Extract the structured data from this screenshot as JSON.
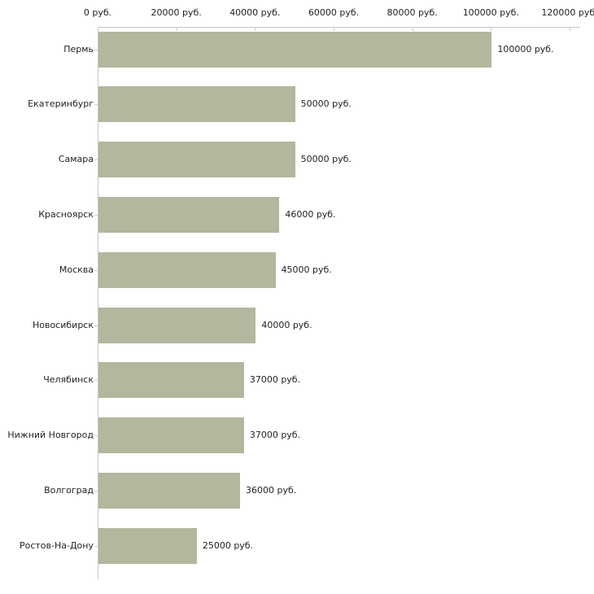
{
  "chart_data": {
    "type": "bar",
    "orientation": "horizontal",
    "title": "",
    "xlabel": "",
    "ylabel": "",
    "grid": "off",
    "legend": "none",
    "x_axis": {
      "position": "top",
      "range": [
        0,
        120000
      ],
      "ticks": [
        0,
        20000,
        40000,
        60000,
        80000,
        100000,
        120000
      ],
      "tick_labels": [
        "0 руб.",
        "20000 руб.",
        "40000 руб.",
        "60000 руб.",
        "80000 руб.",
        "100000 руб.",
        "120000 руб."
      ]
    },
    "categories": [
      "Пермь",
      "Екатеринбург",
      "Самара",
      "Красноярск",
      "Москва",
      "Новосибирск",
      "Челябинск",
      "Нижний Новгород",
      "Волгоград",
      "Ростов-На-Дону"
    ],
    "values": [
      100000,
      50000,
      50000,
      46000,
      45000,
      40000,
      37000,
      37000,
      36000,
      25000
    ],
    "value_labels": [
      "100000 руб.",
      "50000 руб.",
      "50000 руб.",
      "46000 руб.",
      "45000 руб.",
      "40000 руб.",
      "37000 руб.",
      "37000 руб.",
      "36000 руб.",
      "25000 руб."
    ],
    "colors": {
      "bar": "#b2b79d",
      "axis_line": "#c6c6c6",
      "tick": "#d4d1b6",
      "text": "#222222",
      "background": "#ffffff"
    }
  }
}
